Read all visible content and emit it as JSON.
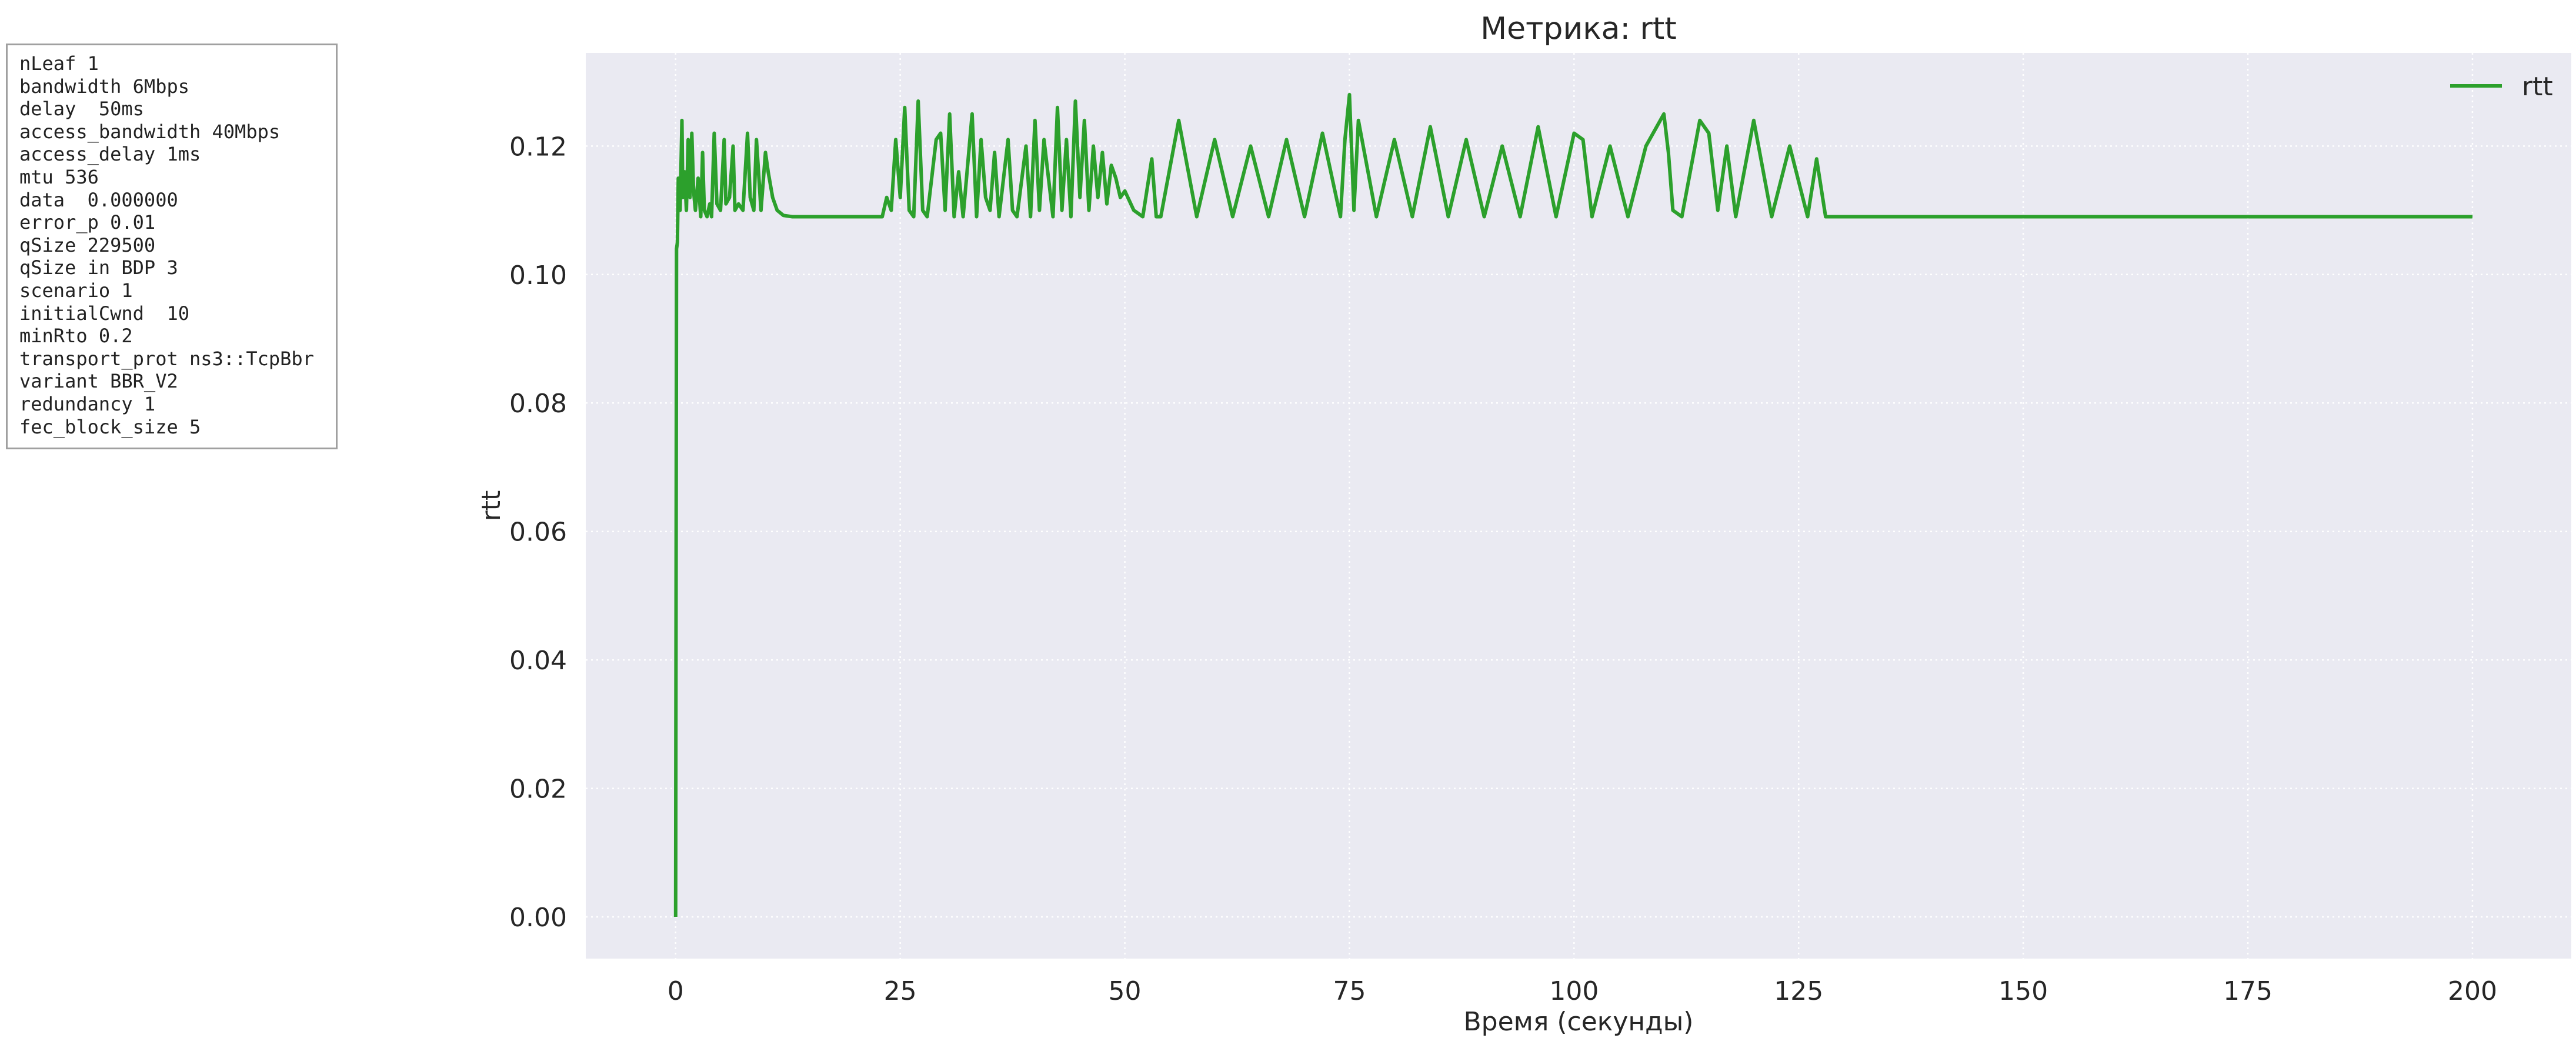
{
  "params_box": {
    "lines": [
      "nLeaf 1",
      "bandwidth 6Mbps",
      "delay  50ms",
      "access_bandwidth 40Mbps",
      "access_delay 1ms",
      "mtu 536",
      "data  0.000000",
      "error_p 0.01",
      "qSize 229500",
      "qSize in BDP 3",
      "scenario 1",
      "initialCwnd  10",
      "minRto 0.2",
      "transport_prot ns3::TcpBbr",
      "variant BBR_V2",
      "redundancy 1",
      "fec_block_size 5"
    ]
  },
  "colors": {
    "plot_background": "#eaeaf2",
    "grid": "#ffffff",
    "series": "#2ca02c",
    "text": "#262626"
  },
  "chart_data": {
    "type": "line",
    "title": "Метрика: rtt",
    "xlabel": "Время (секунды)",
    "ylabel": "rtt",
    "xlim": [
      -10,
      211
    ],
    "ylim": [
      -0.0065,
      0.1345
    ],
    "xticks": [
      0,
      25,
      50,
      75,
      100,
      125,
      150,
      175,
      200
    ],
    "xtick_labels": [
      "0",
      "25",
      "50",
      "75",
      "100",
      "125",
      "150",
      "175",
      "200"
    ],
    "yticks": [
      0.0,
      0.02,
      0.04,
      0.06,
      0.08,
      0.1,
      0.12
    ],
    "ytick_labels": [
      "0.00",
      "0.02",
      "0.04",
      "0.06",
      "0.08",
      "0.10",
      "0.12"
    ],
    "grid": true,
    "grid_style": "dotted",
    "legend": "top-right",
    "series": [
      {
        "name": "rtt",
        "color": "#2ca02c",
        "x": [
          0.0,
          0.1,
          0.2,
          0.3,
          0.5,
          0.7,
          0.8,
          1.0,
          1.2,
          1.4,
          1.6,
          1.8,
          2.0,
          2.2,
          2.5,
          2.8,
          3.0,
          3.2,
          3.5,
          3.8,
          4.0,
          4.3,
          4.6,
          5.0,
          5.4,
          5.6,
          6.0,
          6.4,
          6.6,
          7.0,
          7.5,
          8.0,
          8.3,
          8.7,
          9.0,
          9.5,
          10.0,
          10.3,
          10.8,
          11.3,
          12.0,
          13.0,
          15.0,
          18.0,
          22.0,
          23.0,
          23.5,
          24.0,
          24.5,
          25.0,
          25.5,
          26.0,
          26.5,
          27.0,
          27.5,
          28.0,
          29.0,
          29.5,
          30.0,
          30.5,
          31.0,
          31.5,
          32.0,
          33.0,
          33.5,
          34.0,
          34.5,
          35.0,
          35.5,
          36.0,
          37.0,
          37.5,
          38.0,
          39.0,
          39.5,
          40.0,
          40.5,
          41.0,
          42.0,
          42.5,
          43.0,
          43.5,
          44.0,
          44.5,
          45.0,
          45.5,
          46.0,
          46.5,
          47.0,
          47.5,
          48.0,
          48.5,
          49.0,
          49.5,
          50.0,
          51.0,
          52.0,
          53.0,
          53.5,
          54.0,
          56.0,
          58.0,
          60.0,
          62.0,
          64.0,
          66.0,
          68.0,
          70.0,
          72.0,
          74.0,
          74.5,
          75.0,
          75.5,
          76.0,
          78.0,
          80.0,
          82.0,
          84.0,
          86.0,
          88.0,
          90.0,
          92.0,
          94.0,
          96.0,
          98.0,
          100.0,
          101.0,
          102.0,
          104.0,
          106.0,
          108.0,
          110.0,
          110.5,
          111.0,
          112.0,
          114.0,
          115.0,
          116.0,
          117.0,
          118.0,
          120.0,
          122.0,
          124.0,
          126.0,
          127.0,
          128.0,
          129.0,
          140.0,
          160.0,
          180.0,
          200.0
        ],
        "y": [
          0.0,
          0.104,
          0.105,
          0.115,
          0.11,
          0.124,
          0.112,
          0.116,
          0.11,
          0.121,
          0.112,
          0.122,
          0.113,
          0.11,
          0.115,
          0.109,
          0.119,
          0.11,
          0.109,
          0.111,
          0.109,
          0.122,
          0.111,
          0.11,
          0.121,
          0.111,
          0.112,
          0.12,
          0.11,
          0.111,
          0.11,
          0.122,
          0.112,
          0.11,
          0.121,
          0.11,
          0.119,
          0.116,
          0.112,
          0.11,
          0.1092,
          0.109,
          0.109,
          0.109,
          0.109,
          0.109,
          0.112,
          0.11,
          0.121,
          0.112,
          0.126,
          0.11,
          0.109,
          0.127,
          0.11,
          0.109,
          0.121,
          0.122,
          0.11,
          0.125,
          0.109,
          0.116,
          0.109,
          0.125,
          0.109,
          0.121,
          0.112,
          0.11,
          0.119,
          0.109,
          0.121,
          0.11,
          0.109,
          0.12,
          0.109,
          0.124,
          0.11,
          0.121,
          0.109,
          0.126,
          0.11,
          0.121,
          0.109,
          0.127,
          0.112,
          0.124,
          0.11,
          0.12,
          0.112,
          0.119,
          0.111,
          0.117,
          0.115,
          0.112,
          0.113,
          0.11,
          0.109,
          0.118,
          0.109,
          0.109,
          0.124,
          0.109,
          0.121,
          0.109,
          0.12,
          0.109,
          0.121,
          0.109,
          0.122,
          0.109,
          0.121,
          0.128,
          0.11,
          0.124,
          0.109,
          0.121,
          0.109,
          0.123,
          0.109,
          0.121,
          0.109,
          0.12,
          0.109,
          0.123,
          0.109,
          0.122,
          0.121,
          0.109,
          0.12,
          0.109,
          0.12,
          0.125,
          0.119,
          0.11,
          0.109,
          0.124,
          0.122,
          0.11,
          0.12,
          0.109,
          0.124,
          0.109,
          0.12,
          0.109,
          0.118,
          0.109,
          0.109,
          0.109,
          0.109,
          0.109,
          0.109
        ]
      }
    ]
  }
}
